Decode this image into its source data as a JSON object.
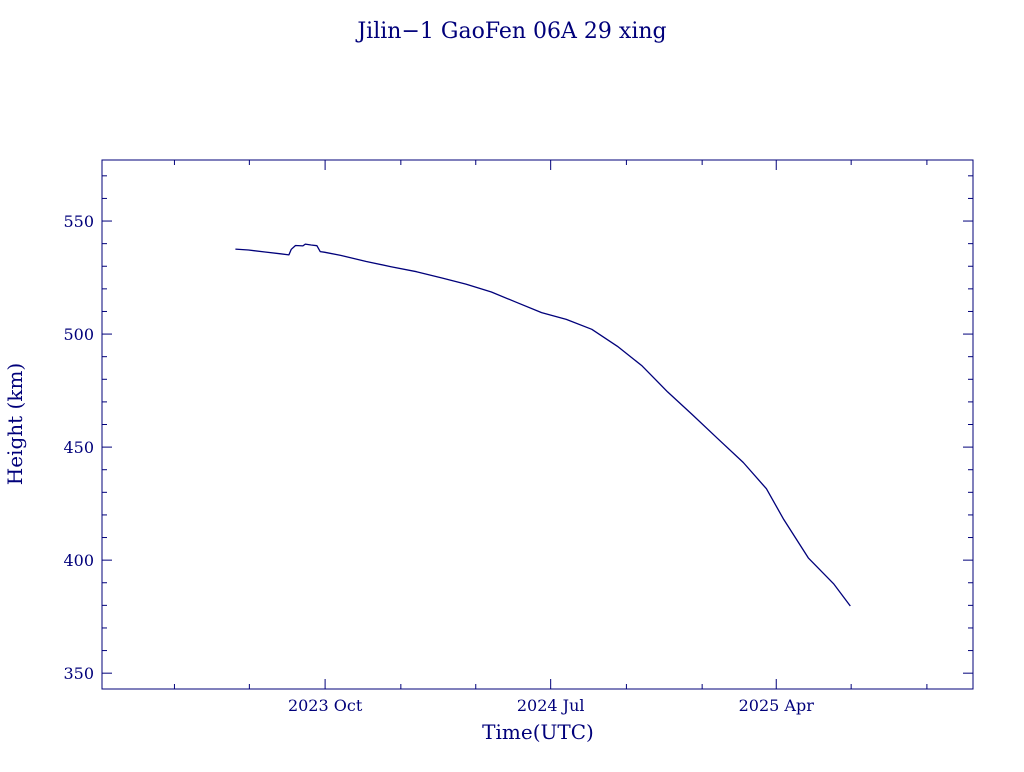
{
  "chart_data": {
    "type": "line",
    "title": "Jilin−1 GaoFen 06A 29 xing",
    "xlabel": "Time(UTC)",
    "ylabel": "Height (km)",
    "ylim": [
      343,
      577
    ],
    "xlim": [
      "2023-01-03",
      "2025-11-26"
    ],
    "x_tick_labels": [
      {
        "date": "2023-10-01",
        "label": "2023 Oct"
      },
      {
        "date": "2024-07-01",
        "label": "2024 Jul"
      },
      {
        "date": "2025-04-01",
        "label": "2025 Apr"
      }
    ],
    "y_ticks": [
      350,
      400,
      450,
      500,
      550
    ],
    "grid": false,
    "color": "#00007a",
    "series": [
      {
        "points": [
          [
            "2023-06-14",
            537.6
          ],
          [
            "2023-06-30",
            537.2
          ],
          [
            "2023-07-20",
            536.3
          ],
          [
            "2023-08-08",
            535.5
          ],
          [
            "2023-08-18",
            535.0
          ],
          [
            "2023-08-21",
            537.5
          ],
          [
            "2023-08-26",
            539.2
          ],
          [
            "2023-09-04",
            539.0
          ],
          [
            "2023-09-07",
            539.8
          ],
          [
            "2023-09-14",
            539.4
          ],
          [
            "2023-09-21",
            539.1
          ],
          [
            "2023-09-25",
            536.5
          ],
          [
            "2023-09-30",
            536.2
          ],
          [
            "2023-10-20",
            534.8
          ],
          [
            "2023-11-20",
            532.1
          ],
          [
            "2023-12-20",
            529.8
          ],
          [
            "2024-01-20",
            527.6
          ],
          [
            "2024-02-20",
            524.8
          ],
          [
            "2024-03-20",
            522.1
          ],
          [
            "2024-04-20",
            518.6
          ],
          [
            "2024-05-20",
            514.1
          ],
          [
            "2024-06-20",
            509.5
          ],
          [
            "2024-07-20",
            506.5
          ],
          [
            "2024-08-20",
            502.1
          ],
          [
            "2024-09-20",
            494.6
          ],
          [
            "2024-10-20",
            485.9
          ],
          [
            "2024-11-20",
            474.4
          ],
          [
            "2024-12-20",
            464.4
          ],
          [
            "2025-01-20",
            453.7
          ],
          [
            "2025-02-20",
            443.2
          ],
          [
            "2025-03-20",
            431.6
          ],
          [
            "2025-04-10",
            418.0
          ],
          [
            "2025-05-10",
            401.0
          ],
          [
            "2025-06-10",
            389.4
          ],
          [
            "2025-06-30",
            379.7
          ]
        ]
      }
    ]
  }
}
